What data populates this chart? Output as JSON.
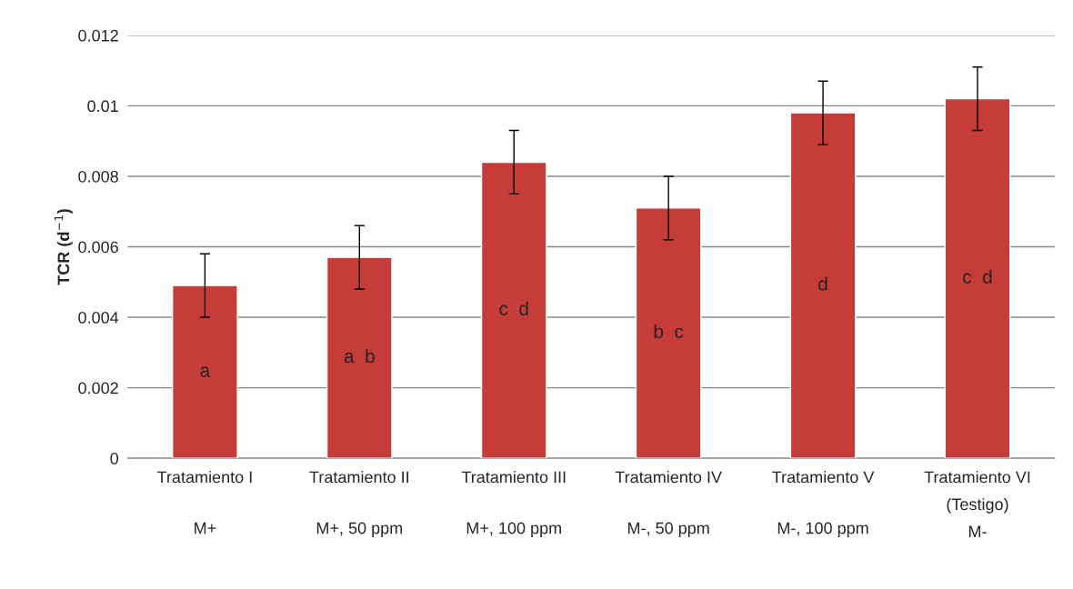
{
  "chart_data": {
    "type": "bar",
    "ylabel": "TCR (d$^{−1}$)",
    "categories": [
      "Tratamiento I\nM+",
      "Tratamiento II\nM+, 50 ppm",
      "Tratamiento III\nM+, 100 ppm",
      "Tratamiento IV\nM-, 50 ppm",
      "Tratamiento V\nM-, 100 ppm",
      "Tratamiento VI\n(Testigo)\nM-"
    ],
    "values": [
      0.0049,
      0.0057,
      0.0084,
      0.0071,
      0.0098,
      0.0102
    ],
    "errors": [
      0.0009,
      0.0009,
      0.0009,
      0.0009,
      0.0009,
      0.0009
    ],
    "color": "#c63c38",
    "ylim": [
      0,
      0.012
    ],
    "yticks": [
      0,
      0.002,
      0.004,
      0.006,
      0.008,
      0.01,
      0.012
    ],
    "grid": "y",
    "legend": false,
    "annotations": [
      "a",
      "a  b",
      "c  d",
      "b  c",
      "d",
      "c  d"
    ]
  }
}
